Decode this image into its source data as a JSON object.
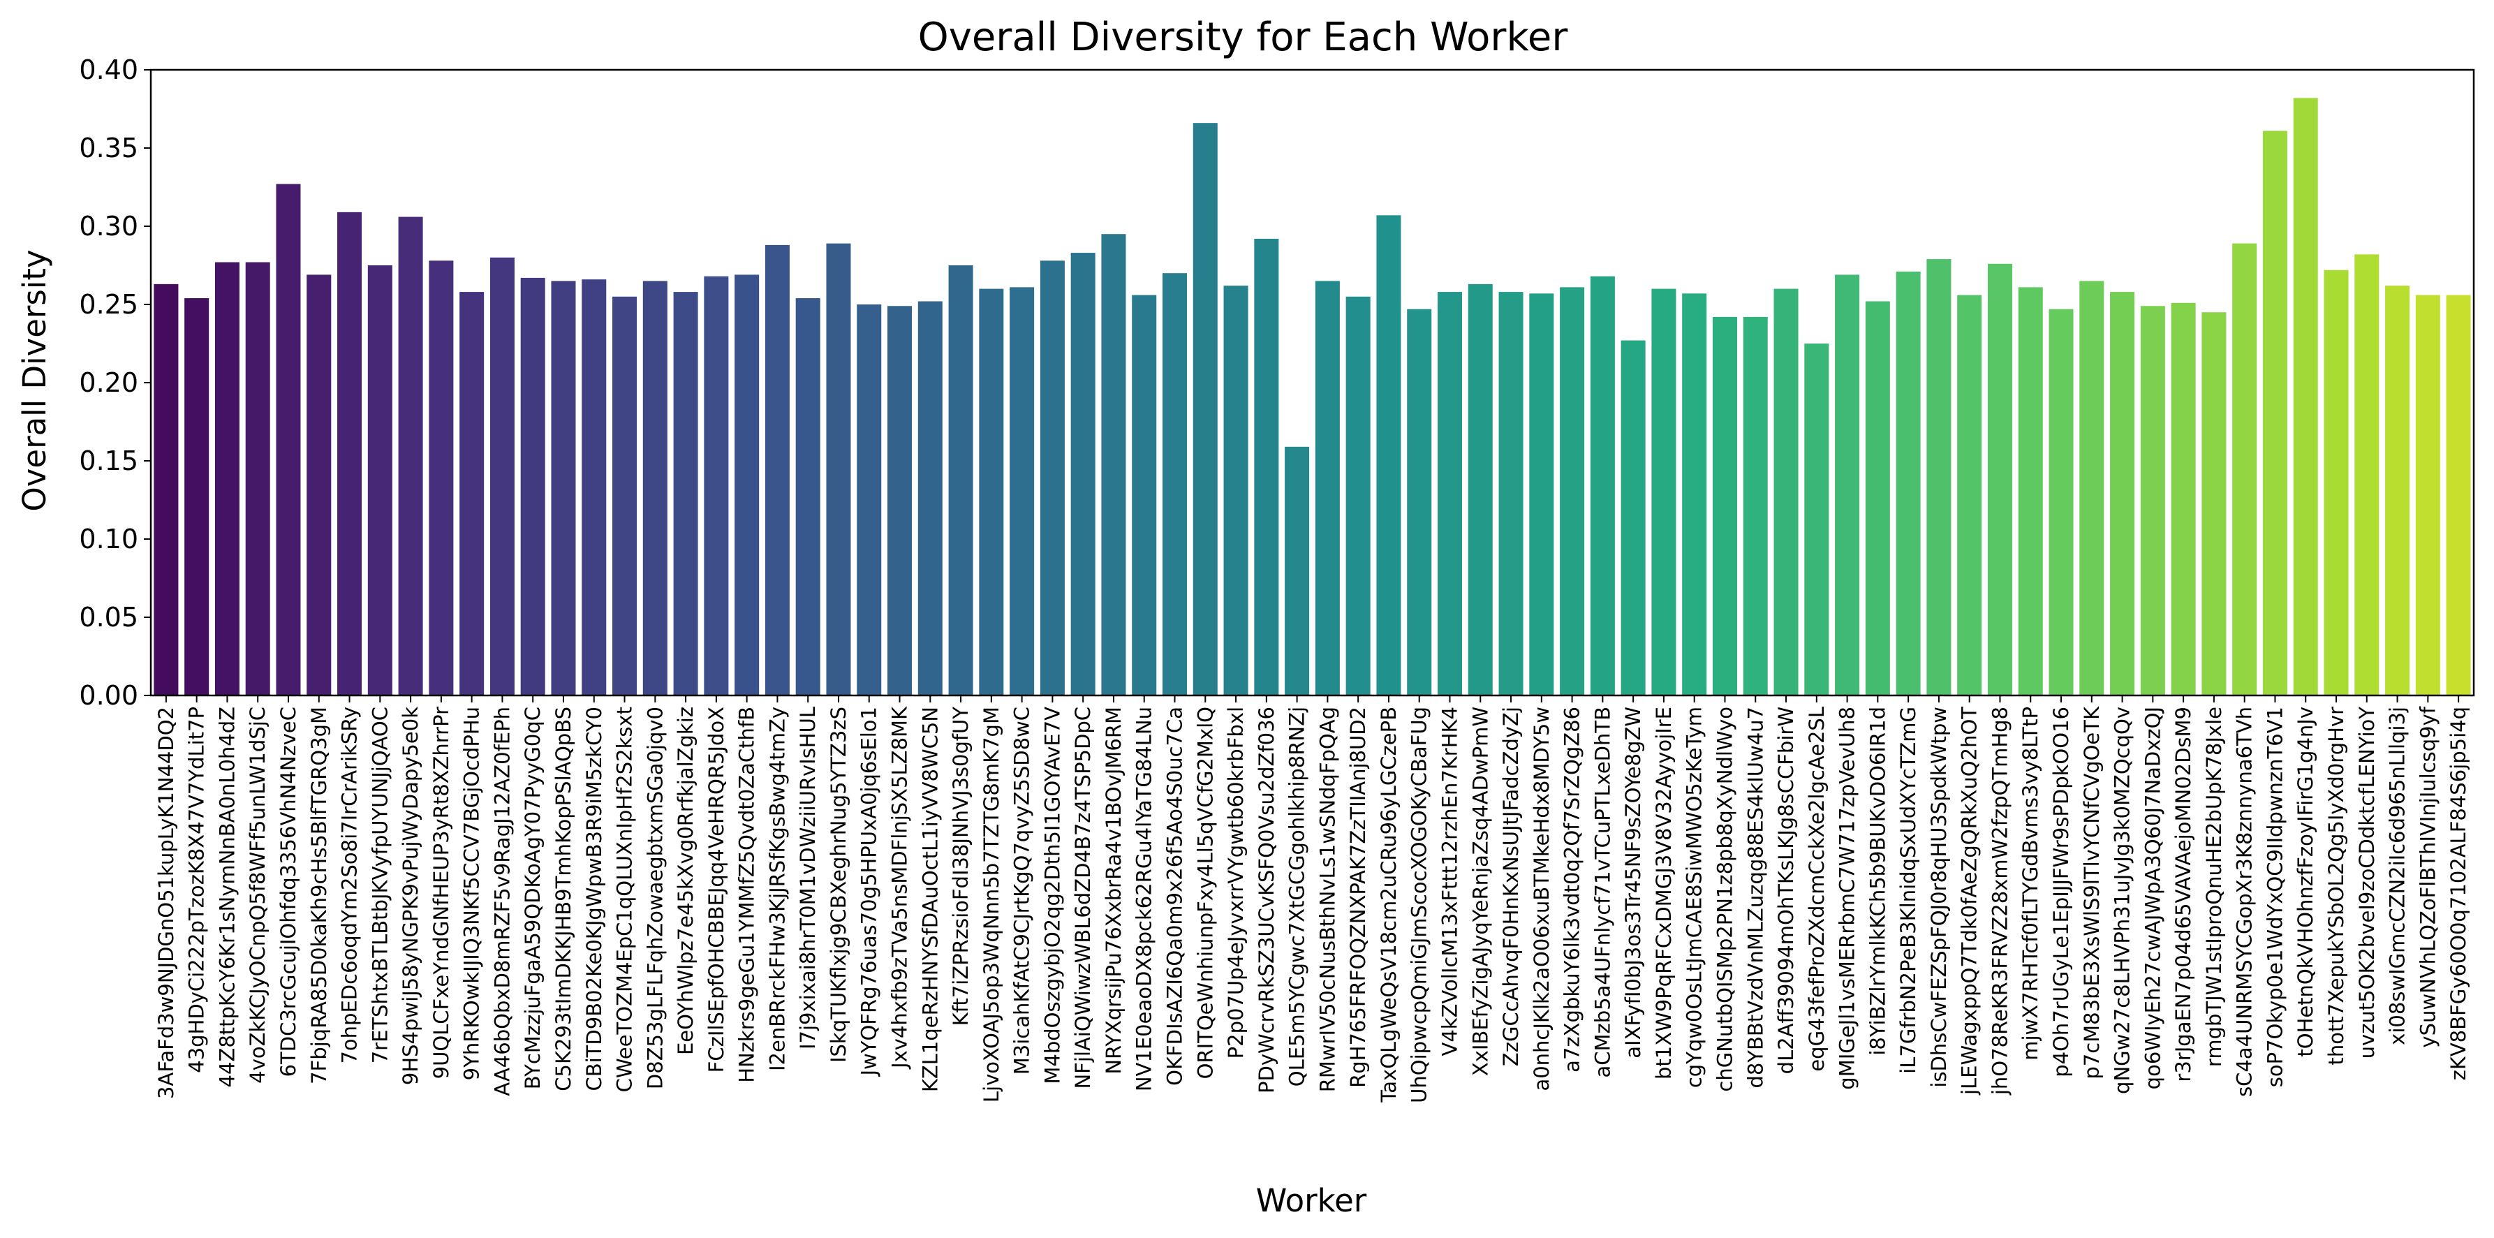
{
  "chart_data": {
    "type": "bar",
    "title": "Overall Diversity for Each Worker",
    "xlabel": "Worker",
    "ylabel": "Overall Diversity",
    "ylim": [
      0,
      0.4
    ],
    "yticks": [
      "0.00",
      "0.05",
      "0.10",
      "0.15",
      "0.20",
      "0.25",
      "0.30",
      "0.35",
      "0.40"
    ],
    "grid": false,
    "legend": "none",
    "colormap": "viridis",
    "categories": [
      "3AFaFd3w9NJDGnO51kupLyK1N44DQ2",
      "43gHDyCi222pTzozK8X47V7YdLit7P",
      "44Z8ttpKcY6Kr1sNymNnBA0nL0h4dZ",
      "4voZkKCJyOCnpQ5f8WFf5unLW1dSjC",
      "6TDC3rcGcujIOhfdq3356VhN4NzveC",
      "7FbjqRA85D0kaKh9cHs5BlfTGRQ3gM",
      "7ohpEDc6oqdYm2So8i7IrCrArikSRy",
      "7rETShtxBTLBtbJKVyfpUYUNJjQAOC",
      "9HS4pwiJ58yNGPK9vPujWyDapy5e0k",
      "9UQLCFxeYndGNfHEUP3yRt8XZhrrPr",
      "9YhRKOwkIJIQ3NKf5CCV7BGjOcdPHu",
      "AA46bQbxD8mRZF5v9RagJ12AZ0fEPh",
      "BYcMzzjuFgaA59QDKoAgY07PyyG0qC",
      "C5K293tImDKKJHB9TmhKopPSlAQpBS",
      "CBiTD9B02Ke0KJgWpwB3R9iM5zkCY0",
      "CWeeTOZM4EpC1qQLUXnIpHf2S2ksxt",
      "D8Z53gLFLFqhZowaegbtxmSGa0jqv0",
      "EeOYhWlpz7e45kXvg0RrfkjalZgkiz",
      "FCzIlSEpfOHCBBEJqq4VeHRQR5JdoX",
      "HNzkrs9geGu1YMMfZ5Qvdt0ZaCthfB",
      "I2enBRrckFHw3KjJRSfKgsBwg4tmZy",
      "I7j9xixai8hrT0M1vDWziiURvIsHUL",
      "ISkqTUKflxjg9CBXeghrNug5YTZ3zS",
      "JwYQFRg76uas70g5HPUxA0jq6sElo1",
      "Jxv4hxfb9zTVa5nsMDFlnjSX5LZ8MK",
      "KZL1qeRzHNYSfDAuOctL1iyVV8WC5N",
      "Kft7iZPRzsioFdI38JNhVJ3s0gfUY",
      "LjvoXOAJ5op3WqNnn5b7TZTG8mK7gM",
      "M3icahKfAtC9CJrtKgQ7qvyZ5SD8wC",
      "M4bdOszgybjO2qg2Dth5I1GOYAvE7V",
      "NFjlAiQWiwzWBL6dZD4B7z4TSP5DpC",
      "NRYXqrsijPu76XxbrRa4v1BOvJM6RM",
      "NV1E0eaoDX8pck62RGu4lYaTG84LNu",
      "OKFDIsAZI6Qa0m9x26f5Ao4S0uc7Ca",
      "ORITQeWnhiunpFxy4Ll5qVCfG2MxlQ",
      "P2p07Up4eJyvxrrVYgwtb60krbFbxl",
      "PDyWcrvRkSZ3UCvKSFQ0Vsu2dZf036",
      "QLE5m5YCgwc7XtGCGgohlkhip8RNZj",
      "RMwrIV50cNusBthNvLs1wSNdqFpQAg",
      "RgH765FRFOQZNXPAK7ZzTIIAnj8UD2",
      "TaxQLgWeQsV18cm2uCRu96yLGCzePB",
      "UhQipwcpQmiGJmScocXOGOKyCBaFUg",
      "V4kZVolIcM13xFttt12rzhEn7KrHK4",
      "XxIBEfyZigAJyqYeRnjaZsq4ADwPmW",
      "ZzGCcAhvqF0HnKxNsUJtJFadcZdyZj",
      "a0nhcJKlk2aO06xuBTMkeHdx8MDY5w",
      "a7zXgbkuY6lk3vdt0q2Qf7SrZQgZ86",
      "aCMzb5a4UFnlycf71vTCuPTLxeDhTB",
      "aIXFyfI0bJ3os3Tr45NF9sZOYe8gZW",
      "bt1XW9PqRFCxDMGJ3V8V32AyyojIrE",
      "cgYqw0OsLtJmCAE8SiwMWO5zKeTym",
      "chGNutbQISMp2PN1z8pb8qXyNdlWyo",
      "d8YBBtVzdVnMLZuzqg88ES4kIUw4u7",
      "dL2Aff39094mOhTKsLKJg8sCCFbirW",
      "eqG43fefProZXdcmCckXe2lgcAe2SL",
      "gMIGeJl1vsMERrbmC7W717zpVevUh8",
      "i8YiBZlrYmlkKCh5b9BUKvDO6IR1d",
      "iL7GfrbN2PeB3KlnidqSxUdXYcTZmG",
      "isDhsCwFEZSpFQJ0r8qHU3SpdkWtpw",
      "jLEWagxppQ7Tdk0fAeZgQRkXuQ2hOT",
      "jhO78ReKR3FRVZ28xmW2fzpQTmHg8",
      "mjwX7RHTcf0fLTYGdBvms3vy8LTtP",
      "p4Oh7rUGyLe1EpIJJFWr9sPDpkOO16",
      "p7cM83bE3XsWlS9lTlvYCNfCVgOeTK",
      "qNGw27c8LHVPh31uJvJg3k0MZQcqQv",
      "qo6WIyEh27cwAJWpA3Q60J7NaDxzQJ",
      "r3rJgaEN7p04d65VAVAejoMN02DsM9",
      "rmgbTJW1stIproQnuHE2bUpK78Jxle",
      "sC4a4UNRMSYCGopXr3K8znnyna6TVh",
      "soP7Okyp0e1WdYxQC9IIdpwnznT6V1",
      "tOHetnQkVHOhnzfFzoyIFirG1g4nJv",
      "thott7XepukYSbOL2Qg5IyXd0rgHvr",
      "uvzut5OK2bveI9zoCDdktcfLENYioY",
      "xi08swIGmcCZN2iIc6d965nLllqi3j",
      "ySuwNVhLQZoFlBThIVInjIulcsq9yf",
      "zKV8BFGy60O0q7102ALF84S6jp5i4q"
    ],
    "values": [
      0.263,
      0.254,
      0.277,
      0.277,
      0.327,
      0.269,
      0.309,
      0.275,
      0.306,
      0.278,
      0.258,
      0.28,
      0.267,
      0.265,
      0.266,
      0.255,
      0.265,
      0.258,
      0.268,
      0.269,
      0.288,
      0.254,
      0.289,
      0.25,
      0.249,
      0.252,
      0.275,
      0.26,
      0.261,
      0.278,
      0.283,
      0.295,
      0.256,
      0.27,
      0.366,
      0.262,
      0.292,
      0.159,
      0.265,
      0.255,
      0.307,
      0.247,
      0.258,
      0.263,
      0.258,
      0.257,
      0.261,
      0.268,
      0.227,
      0.26,
      0.257,
      0.242,
      0.242,
      0.26,
      0.225,
      0.269,
      0.252,
      0.271,
      0.279,
      0.256,
      0.276,
      0.261,
      0.247,
      0.265,
      0.258,
      0.249,
      0.251,
      0.245,
      0.289,
      0.361,
      0.382,
      0.272,
      0.282,
      0.262,
      0.256,
      0.256
    ]
  }
}
